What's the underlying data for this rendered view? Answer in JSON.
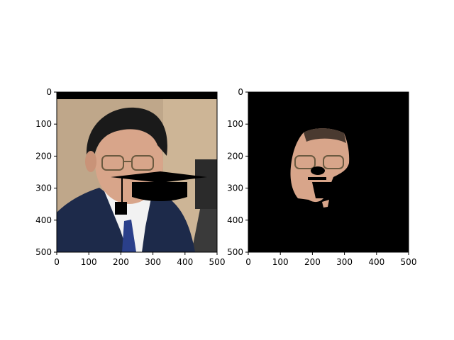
{
  "colors": {
    "background": "#ffffff",
    "frame": "#000000",
    "suit": "#1d2a4a",
    "wall": "#bfa78a",
    "skin": "#d8a58a",
    "hair": "#1a1a1a",
    "shirt": "#f2f2f2",
    "tie": "#2a3f8a",
    "masked": "#000000"
  },
  "panels": [
    {
      "name": "left-panel",
      "description_shown": "photo-with-graduation-cap-overlay",
      "xticks": [
        0,
        100,
        200,
        300,
        400,
        500
      ],
      "yticks": [
        0,
        100,
        200,
        300,
        400,
        500
      ],
      "xtick_labels": [
        "0",
        "100",
        "200",
        "300",
        "400",
        "500"
      ],
      "ytick_labels": [
        "0",
        "100",
        "200",
        "300",
        "400",
        "500"
      ],
      "xlim": [
        0,
        500
      ],
      "ylim": [
        500,
        0
      ]
    },
    {
      "name": "right-panel",
      "description_shown": "face-segmentation-on-black",
      "xticks": [
        0,
        100,
        200,
        300,
        400,
        500
      ],
      "yticks": [
        0,
        100,
        200,
        300,
        400,
        500
      ],
      "xtick_labels": [
        "0",
        "100",
        "200",
        "300",
        "400",
        "500"
      ],
      "ytick_labels": [
        "0",
        "100",
        "200",
        "300",
        "400",
        "500"
      ],
      "xlim": [
        0,
        500
      ],
      "ylim": [
        500,
        0
      ]
    }
  ]
}
